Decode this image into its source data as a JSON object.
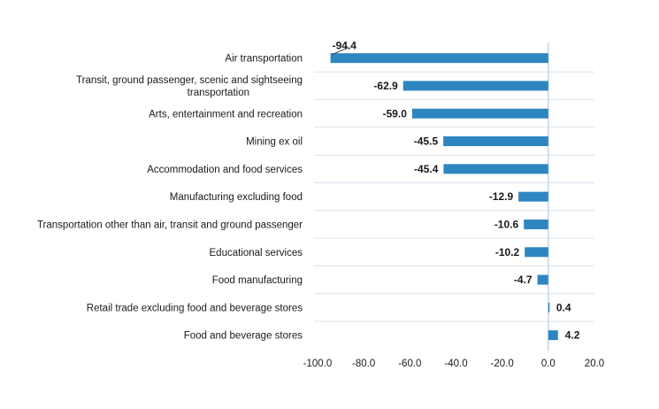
{
  "chart_data": {
    "type": "bar",
    "orientation": "horizontal",
    "categories": [
      "Air transportation",
      "Transit, ground passenger, scenic and sightseeing transportation",
      "Arts, entertainment and recreation",
      "Mining ex oil",
      "Accommodation and food services",
      "Manufacturing excluding food",
      "Transportation other than air, transit and ground passenger",
      "Educational services",
      "Food manufacturing",
      "Retail trade excluding food and beverage stores",
      "Food and beverage stores"
    ],
    "values": [
      -94.4,
      -62.9,
      -59.0,
      -45.5,
      -45.4,
      -12.9,
      -10.6,
      -10.2,
      -4.7,
      0.4,
      4.2
    ],
    "value_labels": [
      "-94.4",
      "-62.9",
      "-59.0",
      "-45.5",
      "-45.4",
      "-12.9",
      "-10.6",
      "-10.2",
      "-4.7",
      "0.4",
      "4.2"
    ],
    "xlim": [
      -100,
      20
    ],
    "x_ticks": [
      -100,
      -80,
      -60,
      -40,
      -20,
      0,
      20
    ],
    "x_tick_labels": [
      "-100.0",
      "-80.0",
      "-60.0",
      "-40.0",
      "-20.0",
      "0.0",
      "20.0"
    ],
    "title": "",
    "xlabel": "",
    "ylabel": "",
    "grid": "horizontal separators between categories",
    "legend": "none",
    "colors": {
      "bar": "#2e86c1",
      "grid": "#d6e3ee",
      "zero_line": "#c5d5e4"
    }
  }
}
